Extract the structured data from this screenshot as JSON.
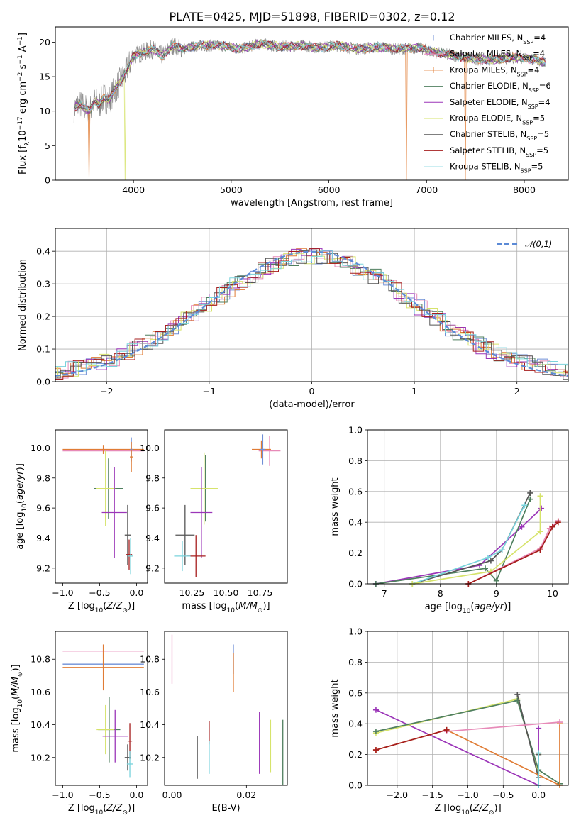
{
  "title": "PLATE=0425, MJD=51898, FIBERID=0302, z=0.12",
  "colors": {
    "chabrier_miles": "#6f8fd6",
    "salpeter_miles": "#e78ab8",
    "kroupa_miles": "#e07c35",
    "chabrier_elodie": "#4f7f5f",
    "salpeter_elodie": "#9b35b8",
    "kroupa_elodie": "#d6e36b",
    "chabrier_stelib": "#555555",
    "salpeter_stelib": "#a51d1d",
    "kroupa_stelib": "#79d3dc",
    "normal": "#5b8ad6"
  },
  "legend_spectrum": [
    {
      "key": "chabrier_miles",
      "prefix": "Chabrier MILES, N",
      "suffix": "=4"
    },
    {
      "key": "salpeter_miles",
      "prefix": "Salpeter MILES, N",
      "suffix": "=4"
    },
    {
      "key": "kroupa_miles",
      "prefix": "Kroupa MILES, N",
      "suffix": "=4"
    },
    {
      "key": "chabrier_elodie",
      "prefix": "Chabrier ELODIE, N",
      "suffix": "=6"
    },
    {
      "key": "salpeter_elodie",
      "prefix": "Salpeter ELODIE, N",
      "suffix": "=4"
    },
    {
      "key": "kroupa_elodie",
      "prefix": "Kroupa ELODIE, N",
      "suffix": "=5"
    },
    {
      "key": "chabrier_stelib",
      "prefix": "Chabrier STELIB, N",
      "suffix": "=5"
    },
    {
      "key": "salpeter_stelib",
      "prefix": "Salpeter STELIB, N",
      "suffix": "=5"
    },
    {
      "key": "kroupa_stelib",
      "prefix": "Kroupa STELIB, N",
      "suffix": "=5"
    }
  ],
  "legend_subscript": "SSP",
  "chart_data": [
    {
      "id": "spectrum",
      "type": "line",
      "xlabel": "wavelength [Angstrom, rest frame]",
      "ylabel": "Flux [f",
      "xlim": [
        3200,
        8450
      ],
      "ylim": [
        0,
        22.2
      ],
      "xticks": [
        4000,
        5000,
        6000,
        7000,
        8000
      ],
      "yticks": [
        0,
        5,
        10,
        15,
        20
      ],
      "data_series": {
        "name": "data",
        "x": [
          3390,
          3450,
          3500,
          3550,
          3600,
          3650,
          3700,
          3750,
          3800,
          3850,
          3900,
          3950,
          4000,
          4100,
          4200,
          4300,
          4400,
          4500,
          4700,
          4900,
          5100,
          5300,
          5500,
          5700,
          5900,
          6100,
          6300,
          6500,
          6700,
          6900,
          7100,
          7300,
          7500,
          7700,
          7900,
          8100,
          8220
        ],
        "values": [
          10.5,
          11,
          10.5,
          10,
          11.5,
          11,
          12,
          11.5,
          13,
          14,
          15,
          16.5,
          18,
          18.5,
          19,
          18,
          19.5,
          19,
          19.5,
          19.5,
          19,
          19.8,
          19.3,
          19.5,
          19.2,
          19.5,
          19,
          19.3,
          19,
          19.2,
          18.5,
          18,
          17.5,
          17.5,
          17.8,
          17.5,
          17
        ]
      },
      "dips": [
        {
          "series": "kroupa_miles",
          "x": 3545
        },
        {
          "series": "kroupa_elodie",
          "x": 3915
        },
        {
          "series": "kroupa_miles",
          "x": 6790
        },
        {
          "series": "kroupa_miles",
          "x": 7400
        }
      ]
    },
    {
      "id": "residuals",
      "type": "line",
      "xlabel": "(data-model)/error",
      "ylabel": "Normed distribution",
      "xlim": [
        -2.5,
        2.5
      ],
      "ylim": [
        0,
        0.47
      ],
      "xticks": [
        -2,
        -1,
        0,
        1,
        2
      ],
      "yticks": [
        0.0,
        0.1,
        0.2,
        0.3,
        0.4
      ],
      "normal_label": "𝒩(0,1)"
    },
    {
      "id": "age_vs_Z",
      "type": "scatter",
      "xlabel": "Z [log",
      "ylabel": "age  [log",
      "xlim": [
        -1.1,
        0.15
      ],
      "ylim": [
        9.1,
        10.12
      ],
      "xticks": [
        -1.0,
        -0.5,
        0.0
      ],
      "yticks": [
        9.2,
        9.4,
        9.6,
        9.8,
        10.0
      ],
      "points": [
        {
          "s": "salpeter_miles",
          "x": -0.45,
          "xe": 0.55,
          "y": 9.98,
          "ye": 0.02
        },
        {
          "s": "kroupa_miles",
          "x": -0.45,
          "xe": 0.55,
          "y": 9.99,
          "ye": 0.03
        },
        {
          "s": "chabrier_miles",
          "x": -0.07,
          "xe": 0.02,
          "y": 9.99,
          "ye": 0.08
        },
        {
          "s": "kroupa_miles",
          "x": -0.07,
          "xe": 0.02,
          "y": 9.94,
          "ye": 0.1
        },
        {
          "s": "chabrier_elodie",
          "x": -0.38,
          "xe": 0.2,
          "y": 9.73,
          "ye": 0.2
        },
        {
          "s": "kroupa_elodie",
          "x": -0.42,
          "xe": 0.13,
          "y": 9.73,
          "ye": 0.25
        },
        {
          "s": "salpeter_elodie",
          "x": -0.3,
          "xe": 0.17,
          "y": 9.57,
          "ye": 0.3
        },
        {
          "s": "chabrier_stelib",
          "x": -0.12,
          "xe": 0.04,
          "y": 9.42,
          "ye": 0.2
        },
        {
          "s": "salpeter_stelib",
          "x": -0.1,
          "xe": 0.04,
          "y": 9.29,
          "ye": 0.1
        },
        {
          "s": "kroupa_stelib",
          "x": -0.08,
          "xe": 0.03,
          "y": 9.28,
          "ye": 0.12
        }
      ]
    },
    {
      "id": "age_vs_mass",
      "type": "scatter",
      "xlabel": "mass [log",
      "ylabel": "",
      "xlim": [
        10.05,
        10.95
      ],
      "ylim": [
        9.1,
        10.12
      ],
      "xticks": [
        10.25,
        10.5,
        10.75
      ],
      "yticks": [
        9.2,
        9.4,
        9.6,
        9.8,
        10.0
      ],
      "points": [
        {
          "s": "salpeter_miles",
          "x": 10.82,
          "xe": 0.08,
          "y": 9.98,
          "ye": 0.1
        },
        {
          "s": "kroupa_miles",
          "x": 10.76,
          "xe": 0.07,
          "y": 9.99,
          "ye": 0.06
        },
        {
          "s": "chabrier_miles",
          "x": 10.77,
          "xe": 0.02,
          "y": 9.99,
          "ye": 0.1
        },
        {
          "s": "chabrier_elodie",
          "x": 10.35,
          "xe": 0.08,
          "y": 9.73,
          "ye": 0.22
        },
        {
          "s": "kroupa_elodie",
          "x": 10.34,
          "xe": 0.1,
          "y": 9.73,
          "ye": 0.24
        },
        {
          "s": "salpeter_elodie",
          "x": 10.32,
          "xe": 0.08,
          "y": 9.57,
          "ye": 0.3
        },
        {
          "s": "chabrier_stelib",
          "x": 10.2,
          "xe": 0.07,
          "y": 9.42,
          "ye": 0.2
        },
        {
          "s": "salpeter_stelib",
          "x": 10.28,
          "xe": 0.07,
          "y": 9.28,
          "ye": 0.14
        },
        {
          "s": "kroupa_stelib",
          "x": 10.18,
          "xe": 0.06,
          "y": 9.28,
          "ye": 0.1
        }
      ]
    },
    {
      "id": "weight_vs_age",
      "type": "line",
      "xlabel": "age  [log",
      "ylabel": "mass weight",
      "xlim": [
        6.7,
        10.28
      ],
      "ylim": [
        0,
        1.0
      ],
      "xticks": [
        7,
        8,
        9,
        10
      ],
      "yticks": [
        0.0,
        0.2,
        0.4,
        0.6,
        0.8,
        1.0
      ],
      "lines": [
        {
          "s": "salpeter_elodie",
          "x": [
            6.85,
            8.7,
            9.45,
            9.8
          ],
          "y": [
            0.0,
            0.12,
            0.37,
            0.49
          ]
        },
        {
          "s": "chabrier_elodie",
          "x": [
            6.85,
            8.8,
            9.0,
            9.6
          ],
          "y": [
            0.0,
            0.1,
            0.02,
            0.55
          ]
        },
        {
          "s": "chabrier_stelib",
          "x": [
            7.5,
            8.9,
            9.1,
            9.6
          ],
          "y": [
            0.0,
            0.15,
            0.22,
            0.59
          ]
        },
        {
          "s": "kroupa_stelib",
          "x": [
            7.5,
            8.85,
            9.1,
            9.5
          ],
          "y": [
            0.0,
            0.17,
            0.22,
            0.51
          ]
        },
        {
          "s": "kroupa_elodie",
          "x": [
            7.5,
            8.9,
            9.78,
            9.78
          ],
          "y": [
            0.0,
            0.08,
            0.34,
            0.57
          ]
        },
        {
          "s": "kroupa_miles",
          "x": [
            8.5,
            9.78,
            9.95,
            10.1
          ],
          "y": [
            0.0,
            0.22,
            0.36,
            0.4
          ]
        },
        {
          "s": "salpeter_miles",
          "x": [
            8.5,
            9.78,
            9.95,
            10.1
          ],
          "y": [
            0.0,
            0.23,
            0.36,
            0.41
          ]
        },
        {
          "s": "salpeter_stelib",
          "x": [
            8.5,
            9.78,
            10.0,
            10.1
          ],
          "y": [
            0.0,
            0.22,
            0.37,
            0.4
          ]
        }
      ]
    },
    {
      "id": "mass_vs_Z",
      "type": "scatter",
      "xlabel": "Z [log",
      "ylabel": "mass [log",
      "xlim": [
        -1.1,
        0.15
      ],
      "ylim": [
        10.03,
        10.97
      ],
      "xticks": [
        -1.0,
        -0.5,
        0.0
      ],
      "yticks": [
        10.2,
        10.4,
        10.6,
        10.8
      ],
      "points": [
        {
          "s": "salpeter_miles",
          "x": -0.45,
          "xe": 0.55,
          "y": 10.85,
          "ye": 0.04
        },
        {
          "s": "chabrier_miles",
          "x": -0.45,
          "xe": 0.55,
          "y": 10.77,
          "ye": 0.02
        },
        {
          "s": "kroupa_miles",
          "x": -0.45,
          "xe": 0.55,
          "y": 10.75,
          "ye": 0.14
        },
        {
          "s": "chabrier_elodie",
          "x": -0.37,
          "xe": 0.15,
          "y": 10.37,
          "ye": 0.2
        },
        {
          "s": "kroupa_elodie",
          "x": -0.42,
          "xe": 0.12,
          "y": 10.37,
          "ye": 0.15
        },
        {
          "s": "salpeter_elodie",
          "x": -0.29,
          "xe": 0.17,
          "y": 10.33,
          "ye": 0.16
        },
        {
          "s": "salpeter_stelib",
          "x": -0.09,
          "xe": 0.03,
          "y": 10.3,
          "ye": 0.11
        },
        {
          "s": "chabrier_stelib",
          "x": -0.12,
          "xe": 0.04,
          "y": 10.2,
          "ye": 0.08
        },
        {
          "s": "kroupa_stelib",
          "x": -0.09,
          "xe": 0.04,
          "y": 10.16,
          "ye": 0.08
        }
      ]
    },
    {
      "id": "mass_vs_ebv",
      "type": "scatter",
      "xlabel": "E(B-V)",
      "ylabel": "",
      "xlim": [
        -0.002,
        0.031
      ],
      "ylim": [
        10.03,
        10.97
      ],
      "xticks": [
        0.0,
        0.02
      ],
      "yticks": [
        10.2,
        10.4,
        10.6,
        10.8
      ],
      "points": [
        {
          "s": "salpeter_miles",
          "x": 0.0,
          "y": 10.8,
          "ye": 0.15
        },
        {
          "s": "chabrier_miles",
          "x": 0.0165,
          "y": 10.8,
          "ye": 0.09
        },
        {
          "s": "kroupa_miles",
          "x": 0.0165,
          "y": 10.72,
          "ye": 0.12
        },
        {
          "s": "chabrier_stelib",
          "x": 0.0068,
          "y": 10.2,
          "ye": 0.13
        },
        {
          "s": "salpeter_stelib",
          "x": 0.01,
          "y": 10.35,
          "ye": 0.07
        },
        {
          "s": "kroupa_stelib",
          "x": 0.01,
          "y": 10.2,
          "ye": 0.1
        },
        {
          "s": "salpeter_elodie",
          "x": 0.0235,
          "y": 10.29,
          "ye": 0.19
        },
        {
          "s": "kroupa_elodie",
          "x": 0.0265,
          "y": 10.27,
          "ye": 0.16
        },
        {
          "s": "chabrier_elodie",
          "x": 0.0298,
          "y": 10.23,
          "ye": 0.2
        }
      ]
    },
    {
      "id": "weight_vs_Z",
      "type": "line",
      "xlabel": "Z [log",
      "ylabel": "mass weight",
      "xlim": [
        -2.42,
        0.42
      ],
      "ylim": [
        0,
        1.0
      ],
      "xticks": [
        -2.0,
        -1.5,
        -1.0,
        -0.5,
        0.0
      ],
      "yticks": [
        0.0,
        0.2,
        0.4,
        0.6,
        0.8,
        1.0
      ],
      "lines": [
        {
          "s": "salpeter_elodie",
          "x": [
            -2.3,
            0.0,
            0.0
          ],
          "y": [
            0.49,
            0.0,
            0.37
          ]
        },
        {
          "s": "kroupa_elodie",
          "x": [
            -2.3,
            -0.3,
            0.0,
            0.0
          ],
          "y": [
            0.34,
            0.56,
            0.08,
            0.2
          ]
        },
        {
          "s": "chabrier_elodie",
          "x": [
            -2.3,
            -0.3,
            0.0,
            0.3
          ],
          "y": [
            0.35,
            0.55,
            0.1,
            0.01
          ]
        },
        {
          "s": "chabrier_stelib",
          "x": [
            -0.3,
            0.0,
            0.0
          ],
          "y": [
            0.59,
            0.05,
            0.2
          ]
        },
        {
          "s": "kroupa_miles",
          "x": [
            -2.3,
            -1.3,
            0.3,
            0.3
          ],
          "y": [
            0.23,
            0.36,
            0.0,
            0.4
          ]
        },
        {
          "s": "salpeter_miles",
          "x": [
            -1.3,
            0.3
          ],
          "y": [
            0.35,
            0.41
          ]
        },
        {
          "s": "salpeter_stelib",
          "x": [
            -2.3,
            -1.3
          ],
          "y": [
            0.23,
            0.36
          ]
        },
        {
          "s": "kroupa_stelib",
          "x": [
            0.0,
            0.0
          ],
          "y": [
            0.0,
            0.21
          ]
        }
      ]
    }
  ]
}
